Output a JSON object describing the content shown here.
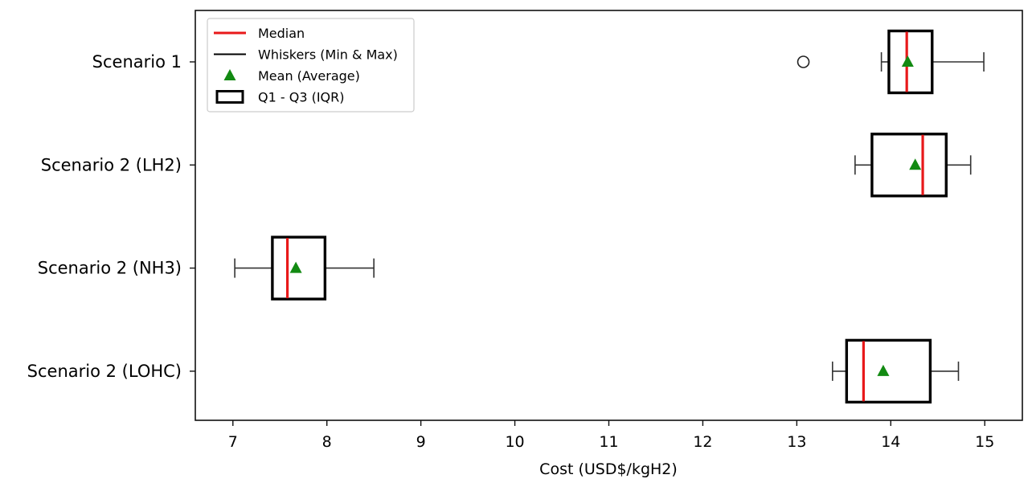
{
  "chart_data": {
    "type": "boxplot",
    "orientation": "horizontal",
    "title": "",
    "xlabel": "Cost (USD$/kgH2)",
    "ylabel": "",
    "xlim": [
      6.6,
      15.4
    ],
    "xticks": [
      7,
      8,
      9,
      10,
      11,
      12,
      13,
      14,
      15
    ],
    "categories": [
      "Scenario 1",
      "Scenario 2 (LH2)",
      "Scenario 2 (NH3)",
      "Scenario 2 (LOHC)"
    ],
    "series": [
      {
        "category": "Scenario 1",
        "min": 13.9,
        "q1": 13.98,
        "median": 14.17,
        "mean": 14.18,
        "q3": 14.44,
        "max": 14.99,
        "outliers": [
          13.07
        ]
      },
      {
        "category": "Scenario 2 (LH2)",
        "min": 13.62,
        "q1": 13.8,
        "median": 14.34,
        "mean": 14.26,
        "q3": 14.59,
        "max": 14.85,
        "outliers": []
      },
      {
        "category": "Scenario 2 (NH3)",
        "min": 7.02,
        "q1": 7.42,
        "median": 7.58,
        "mean": 7.67,
        "q3": 7.98,
        "max": 8.5,
        "outliers": []
      },
      {
        "category": "Scenario 2 (LOHC)",
        "min": 13.38,
        "q1": 13.53,
        "median": 13.71,
        "mean": 13.92,
        "q3": 14.42,
        "max": 14.72,
        "outliers": []
      }
    ],
    "legend": {
      "placement": "top-left",
      "entries": [
        {
          "label": "Median",
          "symbol": "line",
          "color": "#e8191a"
        },
        {
          "label": "Whiskers (Min & Max)",
          "symbol": "line",
          "color": "#000000"
        },
        {
          "label": "Mean (Average)",
          "symbol": "triangle",
          "color": "#128a12"
        },
        {
          "label": "Q1 - Q3 (IQR)",
          "symbol": "box",
          "color": "#000000"
        }
      ]
    },
    "colors": {
      "median": "#e8191a",
      "mean": "#128a12",
      "box": "#000000",
      "whisker": "#333333"
    },
    "grid": false
  }
}
